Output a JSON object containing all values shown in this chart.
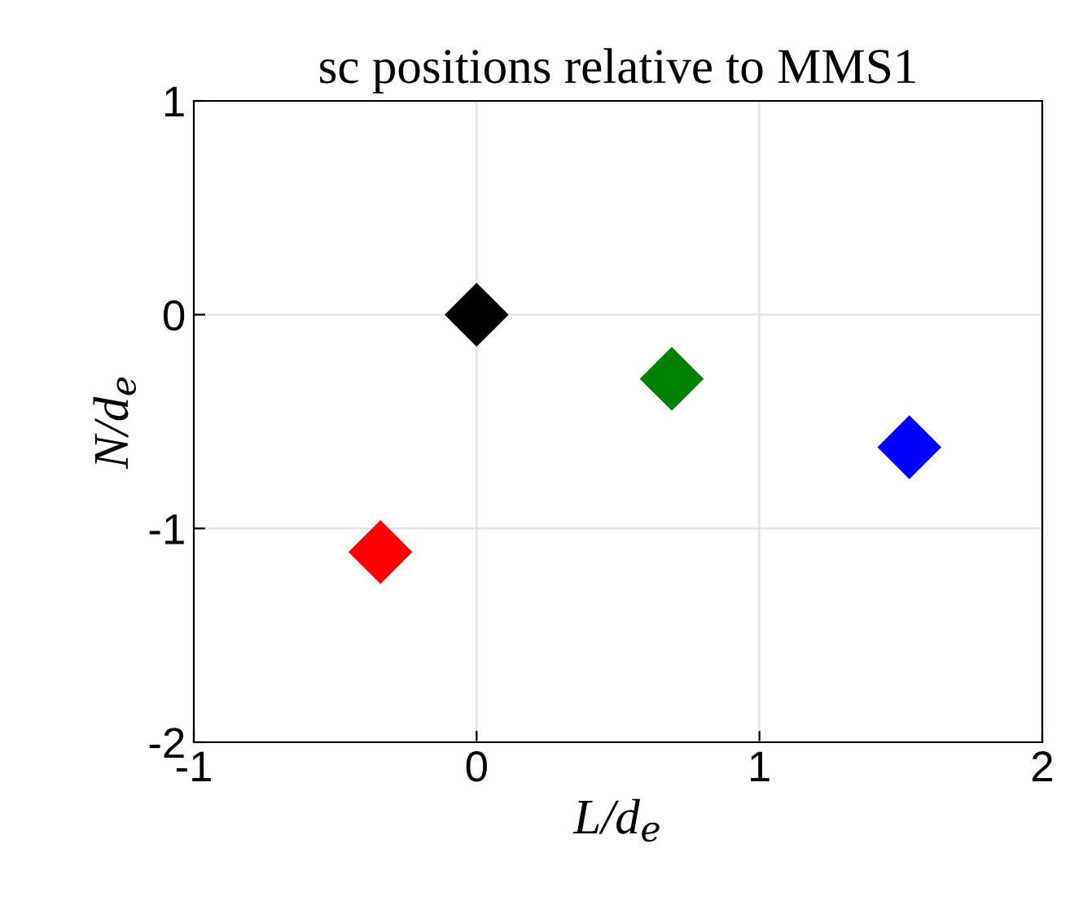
{
  "chart_data": {
    "type": "scatter",
    "title": "sc positions relative to MMS1",
    "xlabel": "L/d$_{e}$",
    "ylabel": "N/d$_{e}$",
    "x": [
      -0.34,
      0,
      0.69,
      1.53
    ],
    "values": [
      -1.11,
      0,
      -0.3,
      -0.62
    ],
    "colors": [
      "#ff0000",
      "#000000",
      "#007f00",
      "#0000ff"
    ],
    "marker": "diamond",
    "grid": true,
    "xlim": [
      -1,
      2
    ],
    "xticks": [
      -1,
      0,
      1,
      2
    ],
    "ylim": [
      -2,
      1
    ],
    "yticks": [
      -2,
      -1,
      0,
      1
    ]
  }
}
